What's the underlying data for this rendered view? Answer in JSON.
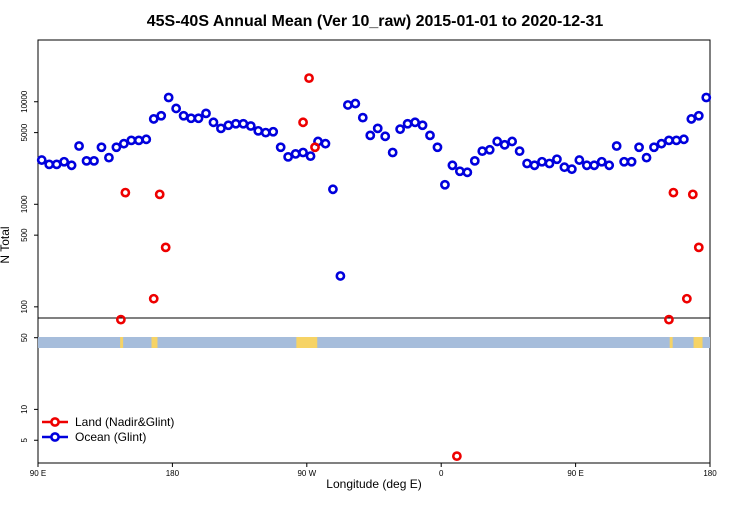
{
  "chart_data": {
    "type": "scatter",
    "title": "45S-40S Annual Mean (Ver 10_raw)   2015-01-01 to 2020-12-31",
    "xlabel": "Longitude (deg E)",
    "ylabel": "N Total",
    "x_ticks": [
      {
        "label": "90 E",
        "value": 90
      },
      {
        "label": "180",
        "value": 180
      },
      {
        "label": "90 W",
        "value": 270
      },
      {
        "label": "0",
        "value": 360
      },
      {
        "label": "90 E",
        "value": 450
      },
      {
        "label": "180",
        "value": 540
      }
    ],
    "y_ticks": [
      {
        "label": "5",
        "value": 5
      },
      {
        "label": "10",
        "value": 10
      },
      {
        "label": "50",
        "value": 50
      },
      {
        "label": "100",
        "value": 100
      },
      {
        "label": "500",
        "value": 500
      },
      {
        "label": "1000",
        "value": 1000
      },
      {
        "label": "5000",
        "value": 5000
      },
      {
        "label": "10000",
        "value": 10000
      }
    ],
    "xlim": [
      90,
      540
    ],
    "ylim": [
      3,
      40000
    ],
    "y_scale": "log",
    "legend": {
      "position": "bottom-left",
      "entries": [
        {
          "label": "Land (Nadir&Glint)",
          "color": "#ee0000"
        },
        {
          "label": "Ocean (Glint)",
          "color": "#0000dd"
        }
      ]
    },
    "series": [
      {
        "name": "Ocean (Glint)",
        "color": "#0000dd",
        "x": [
          92.5,
          97.5,
          102.5,
          107.5,
          112.5,
          117.5,
          122.5,
          127.5,
          132.5,
          137.5,
          142.5,
          147.5,
          152.5,
          157.5,
          162.5,
          167.5,
          172.5,
          177.5,
          182.5,
          187.5,
          192.5,
          197.5,
          202.5,
          207.5,
          212.5,
          217.5,
          222.5,
          227.5,
          232.5,
          237.5,
          242.5,
          247.5,
          252.5,
          257.5,
          262.5,
          267.5,
          272.5,
          277.5,
          282.5,
          287.5,
          292.5,
          297.5,
          302.5,
          307.5,
          312.5,
          317.5,
          322.5,
          327.5,
          332.5,
          337.5,
          342.5,
          347.5,
          352.5,
          357.5,
          362.5,
          367.5,
          372.5,
          377.5,
          382.5,
          387.5,
          392.5,
          397.5,
          402.5,
          407.5,
          412.5,
          417.5,
          422.5,
          427.5,
          432.5,
          437.5,
          442.5,
          447.5,
          452.5,
          457.5,
          462.5,
          467.5,
          472.5,
          477.5,
          482.5,
          487.5,
          492.5,
          497.5,
          502.5,
          507.5,
          512.5,
          517.5,
          522.5,
          527.5,
          532.5,
          537.5
        ],
        "y": [
          2700,
          2450,
          2450,
          2600,
          2400,
          3700,
          2650,
          2650,
          3600,
          2850,
          3600,
          3900,
          4200,
          4200,
          4300,
          6800,
          7300,
          11000,
          8600,
          7300,
          6900,
          6900,
          7700,
          6300,
          5500,
          5900,
          6100,
          6100,
          5800,
          5200,
          5000,
          5100,
          3600,
          2900,
          3100,
          3200,
          2950,
          4100,
          3900,
          1400,
          200,
          9300,
          9600,
          7000,
          4700,
          5500,
          4600,
          3200,
          5400,
          6100,
          6300,
          5900,
          4700,
          3600,
          1550,
          2400,
          2100,
          2050,
          2650,
          3300,
          3400,
          4100,
          3800,
          4100,
          3300,
          2500,
          2400,
          2600,
          2500,
          2750,
          2300,
          2200,
          2700,
          2400,
          2400,
          2600,
          2400,
          3700,
          2600,
          2600,
          3600,
          2850,
          3600,
          3900,
          4200,
          4200,
          4300,
          6800,
          7300,
          11000
        ]
      },
      {
        "name": "Land (Nadir&Glint)",
        "color": "#ee0000",
        "x": [
          145.5,
          148.5,
          167.5,
          171.5,
          175.5,
          267.5,
          271.5,
          275.5,
          370.5,
          512.5,
          515.5,
          524.5,
          528.5,
          532.5
        ],
        "y": [
          75,
          1300,
          120,
          1250,
          380,
          6300,
          17000,
          3600,
          3.5,
          75,
          1300,
          120,
          1250,
          380
        ]
      }
    ],
    "surface_strip": {
      "ocean_color": "#a6bddb",
      "land_color": "#f6d365",
      "land_segments": [
        [
          145,
          147
        ],
        [
          166,
          170
        ],
        [
          263,
          277
        ],
        [
          513,
          515
        ],
        [
          529,
          535
        ]
      ]
    },
    "separator_y_value": 50,
    "grid": false
  }
}
